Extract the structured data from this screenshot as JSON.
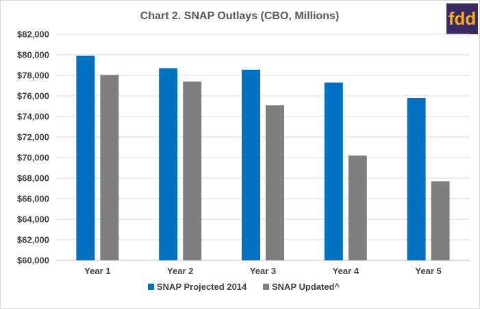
{
  "chart_data": {
    "type": "bar",
    "title": "Chart 2. SNAP Outlays (CBO, Millions)",
    "categories": [
      "Year 1",
      "Year 2",
      "Year 3",
      "Year 4",
      "Year 5"
    ],
    "series": [
      {
        "name": "SNAP Projected 2014",
        "color": "#0070c0",
        "values": [
          79900,
          78700,
          78550,
          77300,
          75800
        ]
      },
      {
        "name": "SNAP Updated^",
        "color": "#7f7f7f",
        "values": [
          78050,
          77400,
          75100,
          70200,
          67700
        ]
      }
    ],
    "ylim": [
      60000,
      82000
    ],
    "yticks": [
      60000,
      62000,
      64000,
      66000,
      68000,
      70000,
      72000,
      74000,
      76000,
      78000,
      80000,
      82000
    ],
    "ytick_labels": [
      "$60,000",
      "$62,000",
      "$64,000",
      "$66,000",
      "$68,000",
      "$70,000",
      "$72,000",
      "$74,000",
      "$76,000",
      "$78,000",
      "$80,000",
      "$82,000"
    ],
    "grid": true,
    "legend_position": "bottom"
  },
  "logo": {
    "text": "fdd",
    "bg_color": "#3b2a62",
    "text_color": "#f5b21b"
  }
}
